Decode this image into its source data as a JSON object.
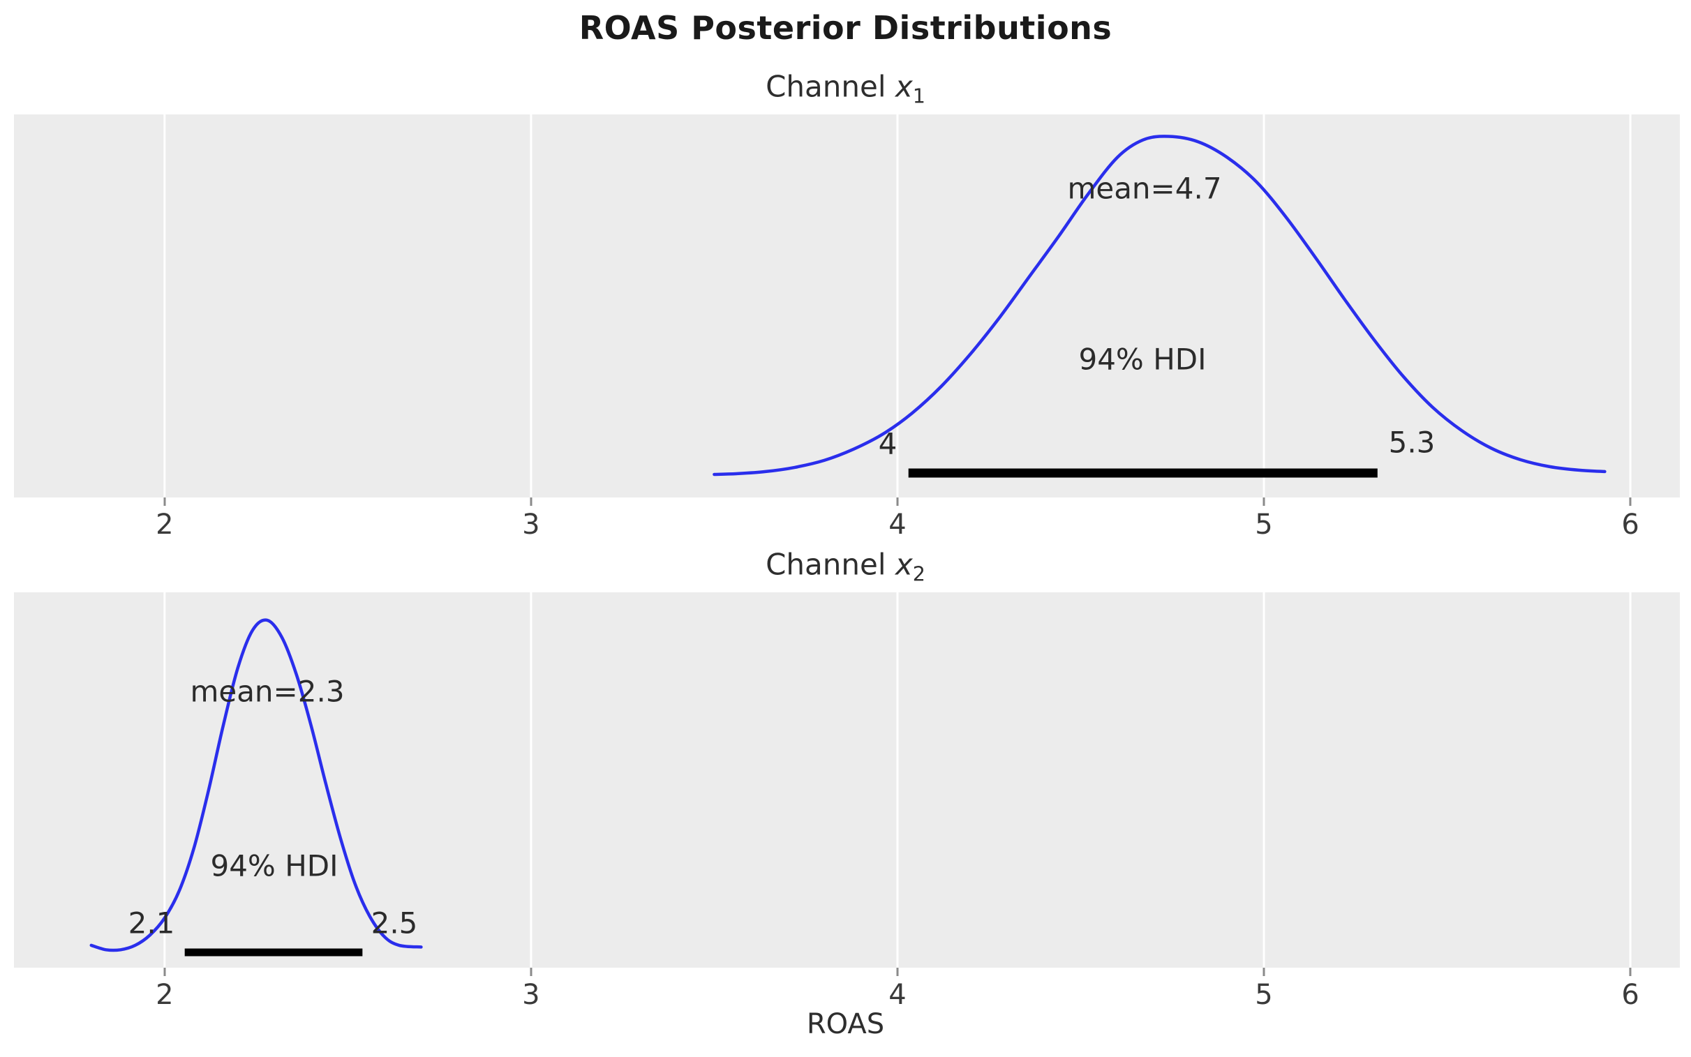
{
  "figure": {
    "title": "ROAS Posterior Distributions",
    "xlabel": "ROAS"
  },
  "colors": {
    "curve": "#2a2eec",
    "axes_background": "#ececec",
    "gridline": "#ffffff",
    "hdi_bar": "#000000",
    "tick_mark": "#8a8a8a",
    "tick_label": "#3a3a3a",
    "text": "#2b2b2b"
  },
  "chart_data": [
    {
      "type": "kde",
      "title_prefix": "Channel ",
      "title_var": "x",
      "title_sub": "1",
      "mean": 4.7,
      "mean_label": "mean=4.7",
      "hdi_text": "94% HDI",
      "hdi_prob": 0.94,
      "hdi_low": 4.03,
      "hdi_high": 5.31,
      "hdi_low_label": "4",
      "hdi_high_label": "5.3",
      "xlim": [
        1.589,
        6.135
      ],
      "xticks": [
        2,
        3,
        4,
        5,
        6
      ],
      "xtick_labels": [
        "2",
        "3",
        "4",
        "5",
        "6"
      ],
      "grid": true,
      "curve": {
        "x": [
          3.5,
          3.56,
          3.64,
          3.72,
          3.8,
          3.88,
          3.96,
          4.04,
          4.12,
          4.2,
          4.28,
          4.36,
          4.44,
          4.52,
          4.6,
          4.67,
          4.74,
          4.82,
          4.9,
          4.98,
          5.06,
          5.14,
          5.22,
          5.3,
          5.38,
          5.46,
          5.54,
          5.62,
          5.7,
          5.78,
          5.86,
          5.93
        ],
        "density": [
          0.02,
          0.022,
          0.028,
          0.04,
          0.06,
          0.092,
          0.135,
          0.195,
          0.272,
          0.365,
          0.47,
          0.585,
          0.7,
          0.82,
          0.925,
          0.975,
          0.985,
          0.97,
          0.925,
          0.855,
          0.755,
          0.64,
          0.52,
          0.405,
          0.3,
          0.212,
          0.145,
          0.095,
          0.062,
          0.042,
          0.032,
          0.028
        ]
      }
    },
    {
      "type": "kde",
      "title_prefix": "Channel ",
      "title_var": "x",
      "title_sub": "2",
      "mean": 2.3,
      "mean_label": "mean=2.3",
      "hdi_text": "94% HDI",
      "hdi_prob": 0.94,
      "hdi_low": 2.055,
      "hdi_high": 2.54,
      "hdi_low_label": "2.1",
      "hdi_high_label": "2.5",
      "xlim": [
        1.589,
        6.135
      ],
      "xticks": [
        2,
        3,
        4,
        5,
        6
      ],
      "xtick_labels": [
        "2",
        "3",
        "4",
        "5",
        "6"
      ],
      "grid": true,
      "curve": {
        "x": [
          1.8,
          1.84,
          1.88,
          1.92,
          1.96,
          2.0,
          2.04,
          2.08,
          2.12,
          2.16,
          2.2,
          2.24,
          2.28,
          2.32,
          2.36,
          2.4,
          2.44,
          2.48,
          2.52,
          2.56,
          2.6,
          2.64,
          2.7
        ],
        "density": [
          0.035,
          0.022,
          0.022,
          0.035,
          0.065,
          0.115,
          0.195,
          0.32,
          0.49,
          0.68,
          0.85,
          0.96,
          0.99,
          0.94,
          0.83,
          0.68,
          0.51,
          0.35,
          0.215,
          0.12,
          0.06,
          0.035,
          0.03
        ]
      }
    }
  ]
}
